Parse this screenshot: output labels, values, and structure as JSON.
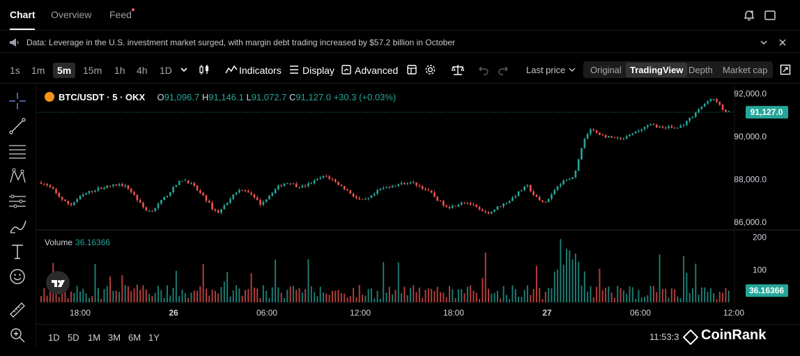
{
  "tabs": [
    {
      "label": "Chart",
      "active": true
    },
    {
      "label": "Overview",
      "active": false
    },
    {
      "label": "Feed",
      "active": false
    }
  ],
  "news": {
    "text": "Data: Leverage in the U.S. investment market surged, with margin debt trading increased by $57.2 billion in October"
  },
  "timeframes": [
    {
      "label": "1s",
      "active": false
    },
    {
      "label": "1m",
      "active": false
    },
    {
      "label": "5m",
      "active": true
    },
    {
      "label": "15m",
      "active": false
    },
    {
      "label": "1h",
      "active": false
    },
    {
      "label": "4h",
      "active": false
    },
    {
      "label": "1D",
      "active": false
    }
  ],
  "toolbar": {
    "indicators": "Indicators",
    "display": "Display",
    "advanced": "Advanced",
    "last_price": "Last price"
  },
  "views": [
    {
      "label": "Original",
      "active": false
    },
    {
      "label": "TradingView",
      "active": true
    },
    {
      "label": "Depth",
      "active": false
    },
    {
      "label": "Market cap",
      "active": false
    }
  ],
  "legend": {
    "symbol": "BTC/USDT · 5 · OKX",
    "o_label": "O",
    "o": "91,096.7",
    "h_label": "H",
    "h": "91,146.1",
    "l_label": "L",
    "l": "91,072.7",
    "c_label": "C",
    "c": "91,127.0",
    "change": "+30.3 (+0.03%)"
  },
  "volume": {
    "label": "Volume",
    "value": "36.16366"
  },
  "ranges": [
    "1D",
    "5D",
    "1M",
    "3M",
    "6M",
    "1Y"
  ],
  "clock": "11:53:3",
  "watermark": "CoinRank",
  "colors": {
    "up": "#26a69a",
    "down": "#ef5350",
    "price_tag": "#26a69a"
  },
  "chart_data": {
    "type": "candlestick",
    "symbol": "BTC/USDT",
    "interval": "5m",
    "price_axis": {
      "ticks": [
        86000,
        88000,
        90000,
        92000
      ],
      "tick_labels": [
        "86,000.0",
        "88,000.0",
        "90,000.0",
        "92,000.0"
      ],
      "range": [
        85700,
        92400
      ]
    },
    "last_price": 91127.0,
    "last_price_label": "91,127.0",
    "volume_axis": {
      "ticks": [
        100,
        200
      ],
      "tick_labels": [
        "100",
        "200"
      ],
      "range": [
        0,
        210
      ]
    },
    "last_volume": 36.16366,
    "last_volume_label": "36.16366",
    "time_axis": [
      "18:00",
      "26",
      "06:00",
      "12:00",
      "18:00",
      "27",
      "06:00",
      "12:00"
    ],
    "price_path": [
      87850,
      87700,
      87500,
      87200,
      86950,
      86800,
      87050,
      87250,
      87400,
      87500,
      87600,
      87650,
      87700,
      87750,
      87700,
      87500,
      87150,
      86750,
      86500,
      86600,
      86900,
      87200,
      87500,
      87800,
      88000,
      87850,
      87600,
      87300,
      87000,
      86600,
      86450,
      86800,
      87150,
      87450,
      87550,
      87400,
      87100,
      86850,
      87100,
      87400,
      87650,
      87800,
      87850,
      87700,
      87650,
      87750,
      87900,
      88050,
      88150,
      88000,
      87800,
      87600,
      87400,
      87150,
      87000,
      87050,
      87250,
      87500,
      87600,
      87700,
      87750,
      87800,
      87850,
      87800,
      87650,
      87500,
      87300,
      87000,
      86800,
      86700,
      86800,
      86950,
      86900,
      86750,
      86550,
      86400,
      86500,
      86700,
      86850,
      87000,
      87250,
      87500,
      87700,
      87300,
      87000,
      86900,
      87200,
      87700,
      87900,
      88000,
      88200,
      89300,
      90100,
      90350,
      90150,
      90000,
      89950,
      89900,
      89850,
      90000,
      90150,
      90300,
      90450,
      90550,
      90450,
      90400,
      90450,
      90350,
      90500,
      90700,
      91000,
      91300,
      91500,
      91800,
      91600,
      91250,
      91127
    ]
  }
}
